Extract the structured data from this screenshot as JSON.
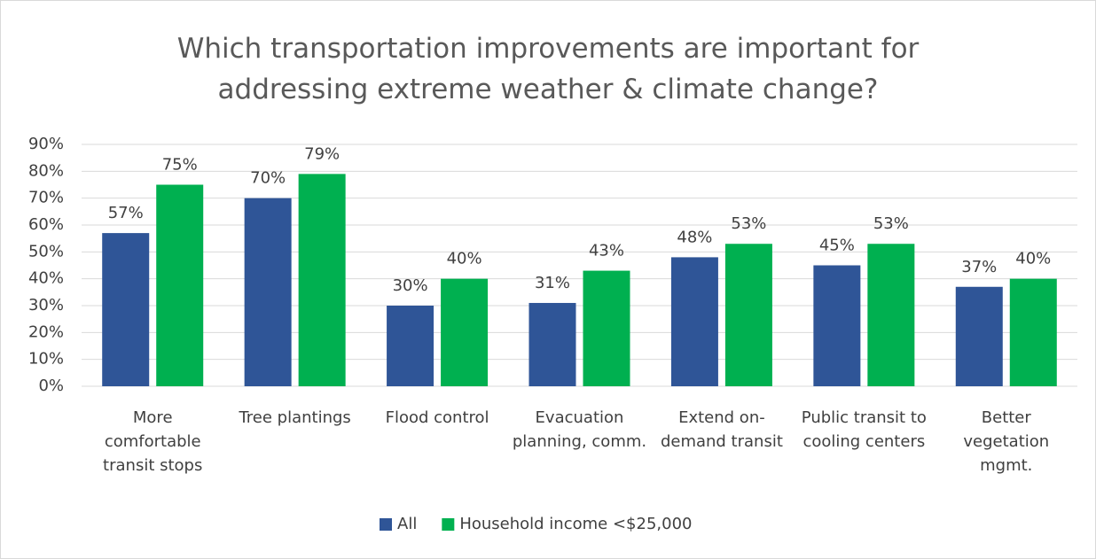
{
  "chart_data": {
    "type": "bar",
    "title": "Which transportation improvements are important for addressing extreme weather & climate change?",
    "categories": [
      "More comfortable transit stops",
      "Tree plantings",
      "Flood control",
      "Evacuation planning, comm.",
      "Extend on-demand transit",
      "Public transit to cooling centers",
      "Better vegetation mgmt."
    ],
    "series": [
      {
        "name": "All",
        "color": "#2f5597",
        "values": [
          57,
          70,
          30,
          31,
          48,
          45,
          37
        ],
        "value_labels": [
          "57%",
          "70%",
          "30%",
          "31%",
          "48%",
          "45%",
          "37%"
        ]
      },
      {
        "name": "Household income <$25,000",
        "color": "#00b050",
        "values": [
          75,
          79,
          40,
          43,
          53,
          53,
          40
        ],
        "value_labels": [
          "75%",
          "79%",
          "40%",
          "43%",
          "53%",
          "53%",
          "40%"
        ]
      }
    ],
    "ylim": [
      0,
      90
    ],
    "yticks": [
      {
        "value": 0,
        "label": "0%"
      },
      {
        "value": 10,
        "label": "10%"
      },
      {
        "value": 20,
        "label": "20%"
      },
      {
        "value": 30,
        "label": "30%"
      },
      {
        "value": 40,
        "label": "40%"
      },
      {
        "value": 50,
        "label": "50%"
      },
      {
        "value": 60,
        "label": "60%"
      },
      {
        "value": 70,
        "label": "70%"
      },
      {
        "value": 80,
        "label": "80%"
      },
      {
        "value": 90,
        "label": "90%"
      }
    ],
    "grid": true,
    "legend": "bottom"
  }
}
